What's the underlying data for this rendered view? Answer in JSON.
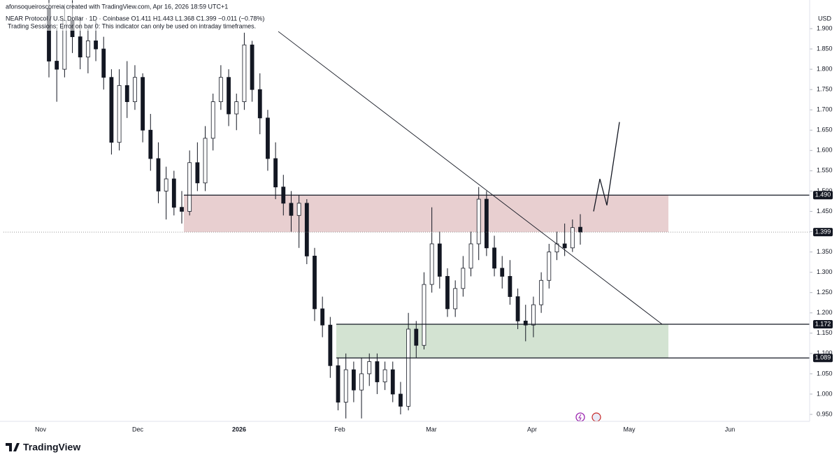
{
  "header": {
    "credit": "afonsoqueiroscorreia created with TradingView.com, Apr 16, 2026 18:59 UTC+1",
    "legend": "NEAR Protocol / U.S. Dollar · 1D · Coinbase  O1.411 H1.443 L1.368 C1.399 −0.011 (−0.78%)",
    "indicator": "Trading Sessions: Error on bar 0: This indicator can only be used on intraday timeframes.",
    "logo": "TradingView"
  },
  "chart_data": {
    "type": "candlestick",
    "currency": "USD",
    "ylim": [
      0.933,
      1.94
    ],
    "yticks": [
      {
        "value": 0.95,
        "label": "0.950"
      },
      {
        "value": 1.0,
        "label": "1.000"
      },
      {
        "value": 1.05,
        "label": "1.050"
      },
      {
        "value": 1.1,
        "label": "1.100"
      },
      {
        "value": 1.15,
        "label": "1.150"
      },
      {
        "value": 1.2,
        "label": "1.200"
      },
      {
        "value": 1.25,
        "label": "1.250"
      },
      {
        "value": 1.3,
        "label": "1.300"
      },
      {
        "value": 1.35,
        "label": "1.350"
      },
      {
        "value": 1.4,
        "label": "1.400"
      },
      {
        "value": 1.45,
        "label": "1.450"
      },
      {
        "value": 1.5,
        "label": "1.500"
      },
      {
        "value": 1.55,
        "label": "1.550"
      },
      {
        "value": 1.6,
        "label": "1.600"
      },
      {
        "value": 1.65,
        "label": "1.650"
      },
      {
        "value": 1.7,
        "label": "1.700"
      },
      {
        "value": 1.75,
        "label": "1.750"
      },
      {
        "value": 1.8,
        "label": "1.800"
      },
      {
        "value": 1.85,
        "label": "1.850"
      },
      {
        "value": 1.9,
        "label": "1.900"
      }
    ],
    "x_labels": [
      "Nov",
      "Dec",
      "2026",
      "Feb",
      "Mar",
      "Apr",
      "May",
      "Jun"
    ],
    "open": [
      1.95,
      1.82,
      1.8,
      1.92,
      1.88,
      1.83,
      1.87,
      1.85,
      1.78,
      1.62,
      1.76,
      1.72,
      1.78,
      1.65,
      1.58,
      1.5,
      1.53,
      1.46,
      1.45,
      1.57,
      1.52,
      1.63,
      1.72,
      1.78,
      1.69,
      1.72,
      1.86,
      1.75,
      1.68,
      1.58,
      1.51,
      1.47,
      1.44,
      1.47,
      1.34,
      1.21,
      1.17,
      1.07,
      0.98,
      1.06,
      1.01,
      1.05,
      1.08,
      1.03,
      1.06,
      1.0,
      0.97,
      1.16,
      1.12,
      1.27,
      1.37,
      1.29,
      1.21,
      1.26,
      1.31,
      1.37,
      1.48,
      1.36,
      1.31,
      1.29,
      1.24,
      1.18,
      1.17,
      1.22,
      1.28,
      1.35,
      1.37,
      1.36,
      1.411
    ],
    "high": [
      1.98,
      1.9,
      1.96,
      1.97,
      1.93,
      1.9,
      1.92,
      1.88,
      1.8,
      1.8,
      1.82,
      1.81,
      1.79,
      1.69,
      1.62,
      1.56,
      1.55,
      1.5,
      1.6,
      1.62,
      1.66,
      1.74,
      1.81,
      1.8,
      1.74,
      1.89,
      1.87,
      1.79,
      1.7,
      1.62,
      1.54,
      1.5,
      1.49,
      1.48,
      1.36,
      1.24,
      1.19,
      1.09,
      1.1,
      1.08,
      1.09,
      1.1,
      1.1,
      1.08,
      1.08,
      1.03,
      1.2,
      1.18,
      1.3,
      1.46,
      1.4,
      1.31,
      1.28,
      1.34,
      1.4,
      1.51,
      1.5,
      1.39,
      1.34,
      1.33,
      1.26,
      1.22,
      1.24,
      1.3,
      1.37,
      1.4,
      1.42,
      1.43,
      1.443
    ],
    "low": [
      1.78,
      1.72,
      1.78,
      1.84,
      1.8,
      1.79,
      1.82,
      1.75,
      1.59,
      1.6,
      1.68,
      1.7,
      1.62,
      1.55,
      1.47,
      1.43,
      1.44,
      1.42,
      1.44,
      1.5,
      1.5,
      1.6,
      1.7,
      1.66,
      1.65,
      1.7,
      1.72,
      1.64,
      1.55,
      1.48,
      1.44,
      1.4,
      1.36,
      1.32,
      1.18,
      1.14,
      1.04,
      0.96,
      0.94,
      0.98,
      0.94,
      1.02,
      1.0,
      1.01,
      0.98,
      0.95,
      0.96,
      1.09,
      1.11,
      1.25,
      1.26,
      1.19,
      1.19,
      1.24,
      1.29,
      1.33,
      1.34,
      1.29,
      1.26,
      1.22,
      1.16,
      1.13,
      1.14,
      1.2,
      1.26,
      1.33,
      1.34,
      1.35,
      1.368
    ],
    "close": [
      1.82,
      1.8,
      1.92,
      1.88,
      1.83,
      1.87,
      1.85,
      1.78,
      1.62,
      1.76,
      1.72,
      1.78,
      1.65,
      1.58,
      1.5,
      1.53,
      1.46,
      1.45,
      1.57,
      1.52,
      1.63,
      1.72,
      1.78,
      1.69,
      1.72,
      1.86,
      1.75,
      1.68,
      1.58,
      1.51,
      1.47,
      1.44,
      1.47,
      1.34,
      1.21,
      1.17,
      1.07,
      0.98,
      1.06,
      1.01,
      1.05,
      1.08,
      1.03,
      1.06,
      1.0,
      0.97,
      1.16,
      1.12,
      1.27,
      1.37,
      1.29,
      1.21,
      1.26,
      1.31,
      1.37,
      1.48,
      1.36,
      1.31,
      1.29,
      1.24,
      1.18,
      1.17,
      1.22,
      1.28,
      1.35,
      1.37,
      1.36,
      1.41,
      1.399
    ],
    "levels": [
      {
        "value": 1.49,
        "label": "1.490"
      },
      {
        "value": 1.399,
        "label": "1.399"
      },
      {
        "value": 1.172,
        "label": "1.172"
      },
      {
        "value": 1.089,
        "label": "1.089"
      }
    ],
    "zones": [
      {
        "top": 1.49,
        "bottom": 1.399,
        "color": "#e8cfd0"
      },
      {
        "top": 1.172,
        "bottom": 1.089,
        "color": "#d3e3d2"
      }
    ],
    "trendline": [
      1.893,
      1.172
    ],
    "projection": [
      1.45,
      1.53,
      1.465,
      1.67
    ]
  }
}
